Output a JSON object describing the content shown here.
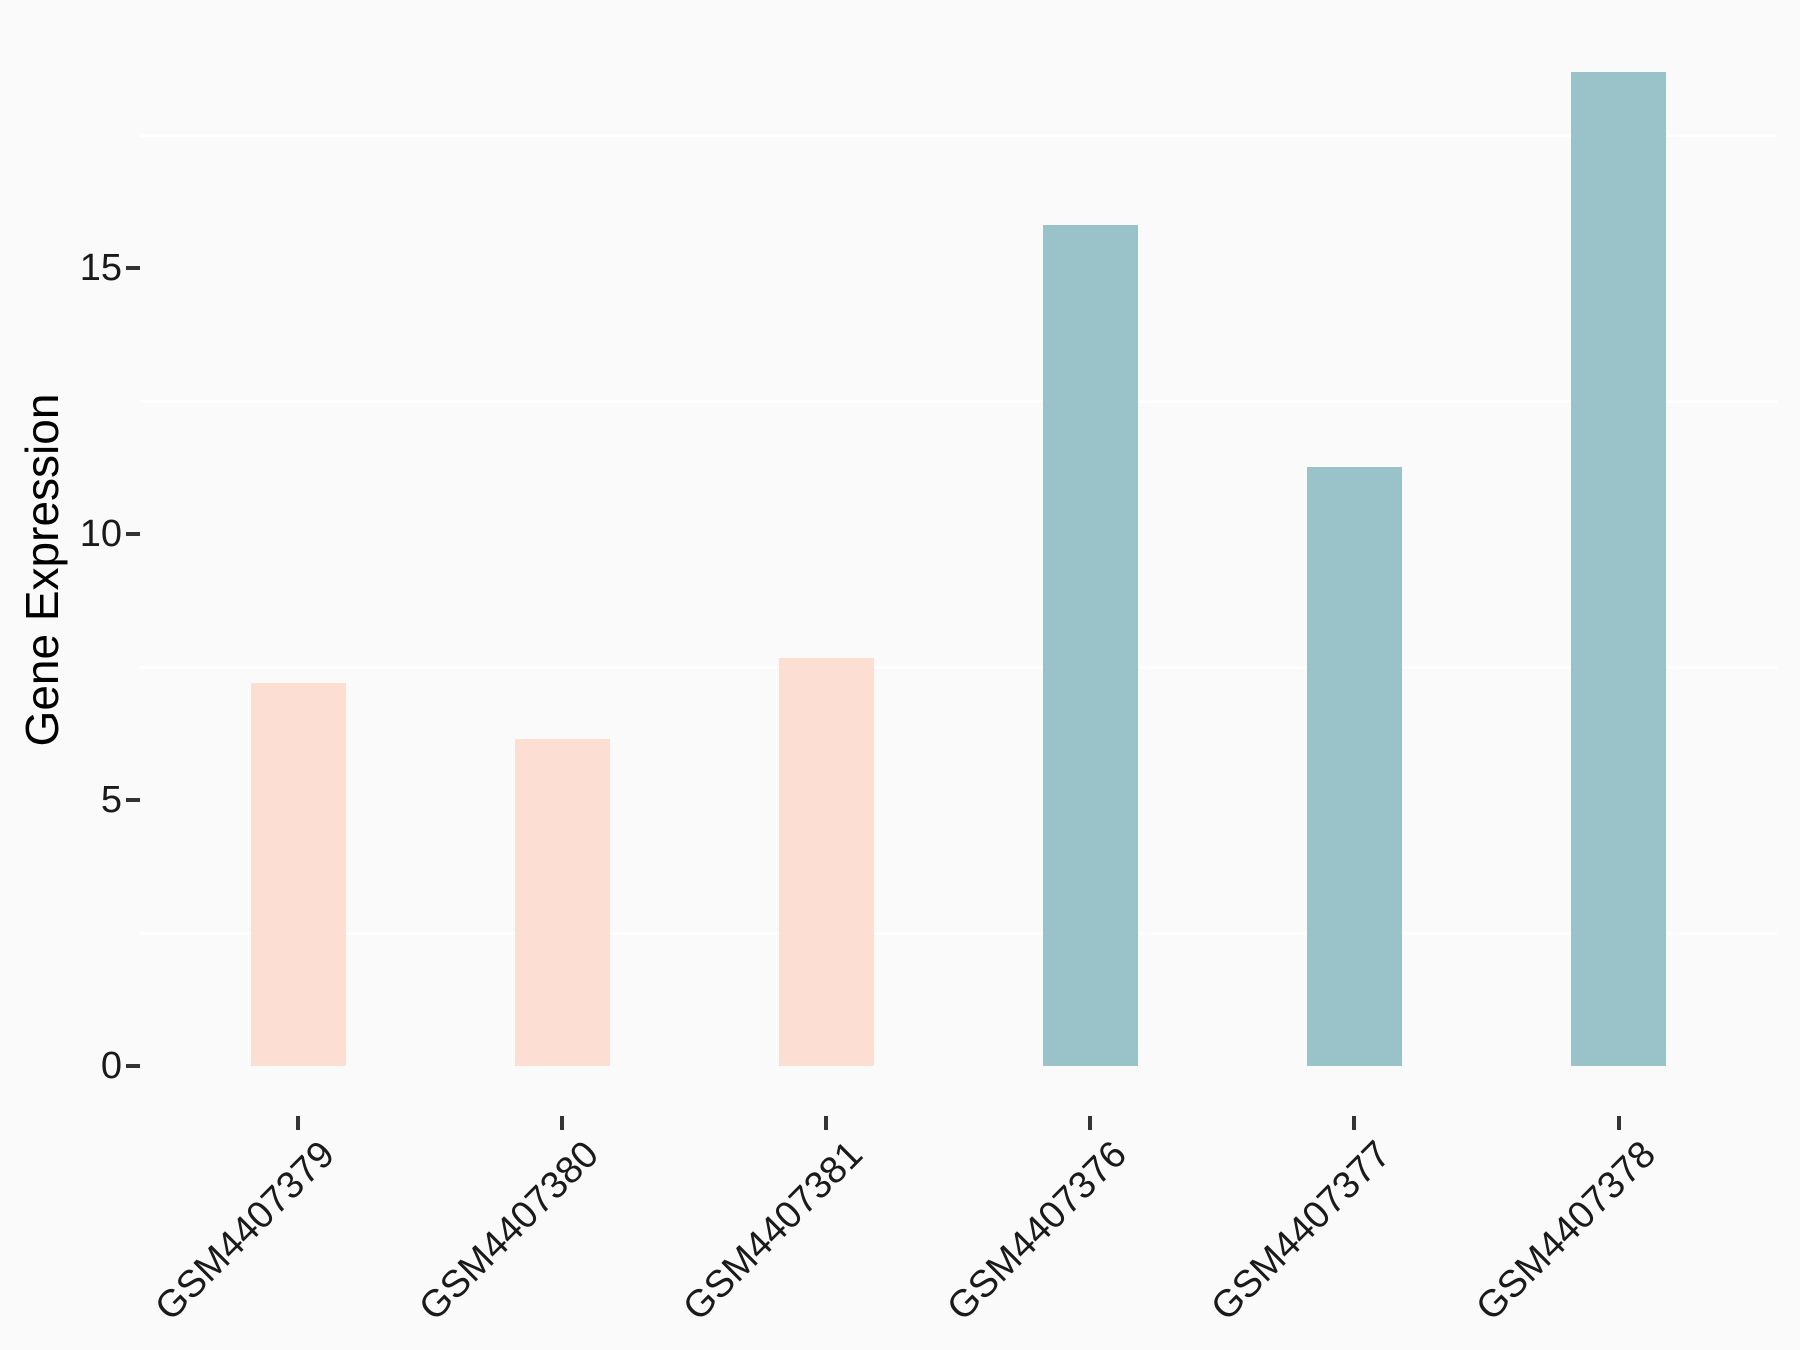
{
  "chart_data": {
    "type": "bar",
    "title": "",
    "xlabel": "",
    "ylabel": "Gene Expression",
    "categories": [
      "GSM4407379",
      "GSM4407380",
      "GSM4407381",
      "GSM4407376",
      "GSM4407377",
      "GSM4407378"
    ],
    "values": [
      7.2,
      6.15,
      7.67,
      15.81,
      11.26,
      18.68
    ],
    "bar_colors": [
      "#fcdfd2",
      "#fcdfd2",
      "#fcdfd2",
      "#99c3c8",
      "#99c3c8",
      "#99c3c8"
    ],
    "group_colors": {
      "pink_group": "#fcdfd2",
      "teal_group": "#99c3c8"
    },
    "yticks": [
      0,
      5,
      10,
      15
    ],
    "minor_gridlines": [
      2.5,
      7.5,
      12.5,
      17.5
    ],
    "ylim": [
      0,
      19.6
    ],
    "grid": "minor horizontal white lines only",
    "legend": "none",
    "background_color": "#fafafa",
    "gridline_color": "#ffffff",
    "tick_mark_color": "#333333",
    "text_color": "#1a1a1a",
    "x_label_rotation_deg": 45
  }
}
